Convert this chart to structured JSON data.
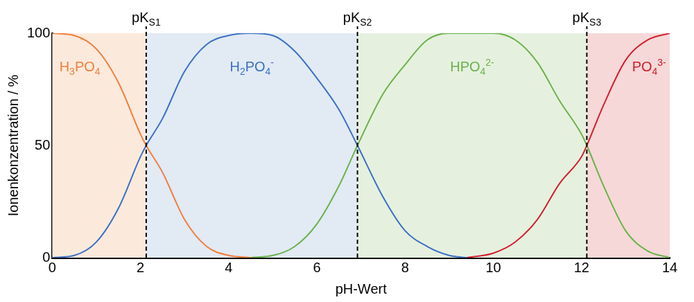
{
  "chart_data": {
    "type": "line",
    "xlabel": "pH-Wert",
    "ylabel": "Ionenkonzentration / %",
    "xlim": [
      0,
      14
    ],
    "xticks": [
      0,
      2,
      4,
      6,
      8,
      10,
      12,
      14
    ],
    "ylim": [
      0,
      100
    ],
    "yticks": [
      0,
      50,
      100
    ],
    "grid": false,
    "legend": false,
    "marker": "none",
    "line_style": "solid",
    "series": [
      {
        "name": "H$_{3}$PO$_{4}$",
        "color": "#f07f3c",
        "x": [
          0,
          0.5,
          1,
          1.5,
          2,
          2.13,
          2.5,
          3,
          3.5,
          4,
          4.5
        ],
        "values": [
          100,
          99,
          93,
          78,
          55,
          50,
          38,
          17,
          5,
          1,
          0
        ]
      },
      {
        "name": "H$_{2}$PO$_{4}$$^{-}$",
        "color": "#3a70c4",
        "x": [
          0,
          0.5,
          1,
          1.5,
          2,
          2.13,
          2.5,
          3,
          3.5,
          4,
          4.5,
          5,
          5.5,
          6,
          6.5,
          6.92,
          7.5,
          8,
          8.5,
          9,
          9.4
        ],
        "values": [
          0,
          1,
          7,
          22,
          45,
          50,
          62,
          83,
          95,
          99,
          100,
          99,
          92,
          80,
          66,
          50,
          27,
          12,
          5,
          1,
          0
        ]
      },
      {
        "name": "HPO$_{4}$$^{2-}$",
        "color": "#6ab24a",
        "x": [
          4.5,
          5,
          5.5,
          6,
          6.5,
          6.92,
          7.5,
          8,
          8.5,
          9,
          10,
          10.5,
          11,
          11.5,
          12,
          12.12,
          12.5,
          13,
          13.5,
          14
        ],
        "values": [
          0,
          1,
          5,
          15,
          32,
          50,
          73,
          86,
          97,
          100,
          100,
          97,
          87,
          70,
          55,
          50,
          32,
          12,
          3,
          0
        ]
      },
      {
        "name": "PO$_{4}$$^{3-}$",
        "color": "#d0202f",
        "x": [
          9.4,
          10,
          10.5,
          11,
          11.5,
          12,
          12.12,
          12.5,
          13,
          13.5,
          14
        ],
        "values": [
          0,
          2,
          7,
          17,
          33,
          45,
          50,
          68,
          88,
          97,
          100
        ]
      }
    ],
    "ref_lines": [
      {
        "axis": "x",
        "value": 2.13,
        "label": "pK$_{S1}$",
        "color": "#000000",
        "line_style": "dashed"
      },
      {
        "axis": "x",
        "value": 6.92,
        "label": "pK$_{S2}$",
        "color": "#000000",
        "line_style": "dashed"
      },
      {
        "axis": "x",
        "value": 12.12,
        "label": "pK$_{S3}$",
        "color": "#000000",
        "line_style": "dashed"
      }
    ],
    "bands": [
      {
        "axis": "x",
        "from": 0,
        "to": 2.13,
        "color": "#fbeadc"
      },
      {
        "axis": "x",
        "from": 2.13,
        "to": 6.92,
        "color": "#e2eaf4"
      },
      {
        "axis": "x",
        "from": 6.92,
        "to": 12.12,
        "color": "#e6f0df"
      },
      {
        "axis": "x",
        "from": 12.12,
        "to": 14,
        "color": "#f6d8d8"
      }
    ]
  }
}
